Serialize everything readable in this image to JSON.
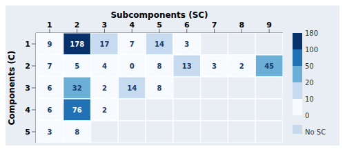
{
  "chart_data": {
    "type": "heatmap",
    "x_label": "Subcomponents (SC)",
    "y_label": "Components (C)",
    "categories": [
      "1",
      "2",
      "3",
      "4",
      "5",
      "6",
      "7",
      "8",
      "9"
    ],
    "rows": [
      "1",
      "2",
      "3",
      "4",
      "5"
    ],
    "values": [
      [
        9,
        178,
        17,
        7,
        14,
        3,
        null,
        null,
        null
      ],
      [
        7,
        5,
        4,
        0,
        8,
        13,
        3,
        2,
        45
      ],
      [
        6,
        32,
        2,
        14,
        8,
        null,
        null,
        null,
        null
      ],
      [
        6,
        76,
        2,
        null,
        null,
        null,
        null,
        null,
        null
      ],
      [
        3,
        8,
        null,
        null,
        null,
        null,
        null,
        null,
        null
      ]
    ],
    "data_labels": true,
    "colorbar": {
      "ticks": [
        0,
        10,
        20,
        50,
        100,
        180
      ],
      "colors": [
        "#f7fbff",
        "#c6dbef",
        "#6baed6",
        "#2171b5",
        "#08306b"
      ],
      "missing_label": "No SC",
      "missing_color": "#c8daea"
    },
    "background_color": "#e8eef4"
  }
}
